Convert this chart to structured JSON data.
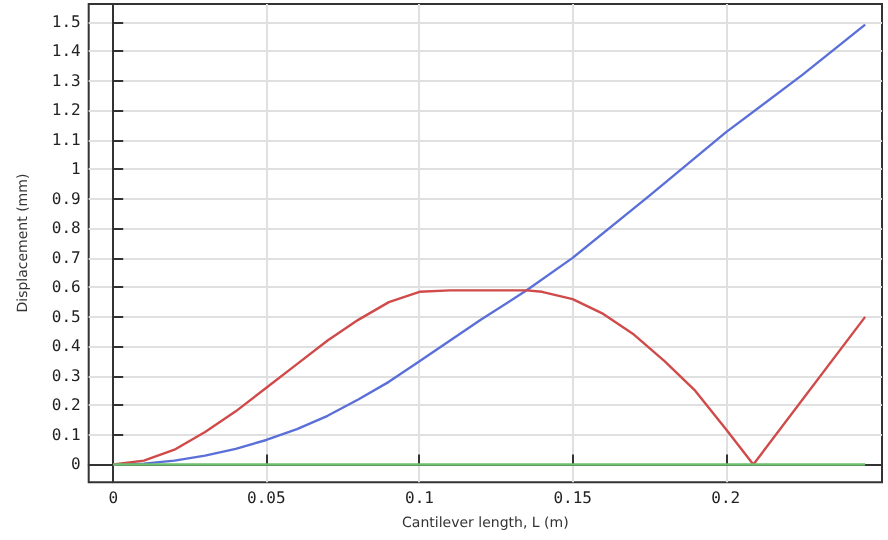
{
  "chart_data": {
    "type": "line",
    "xlabel": "Cantilever length, L (m)",
    "ylabel": "Displacement (mm)",
    "xlim": [
      -0.008,
      0.251
    ],
    "xticks": [
      0,
      0.05,
      0.1,
      0.15,
      0.2
    ],
    "ylim": [
      -0.06,
      1.56
    ],
    "yticks": [
      0,
      0.1,
      0.2,
      0.3,
      0.4,
      0.5,
      0.6,
      0.7,
      0.8,
      0.9,
      1,
      1.1,
      1.2,
      1.3,
      1.4,
      1.5
    ],
    "grid": true,
    "marker": "none",
    "line_style": "solid",
    "series": [
      {
        "color": "#5b6fd8",
        "x": [
          0,
          0.01,
          0.02,
          0.03,
          0.04,
          0.05,
          0.06,
          0.07,
          0.08,
          0.09,
          0.1,
          0.11,
          0.12,
          0.135,
          0.15,
          0.175,
          0.2,
          0.225,
          0.2455
        ],
        "values": [
          0,
          0.003,
          0.013,
          0.03,
          0.053,
          0.083,
          0.12,
          0.165,
          0.22,
          0.28,
          0.35,
          0.42,
          0.49,
          0.59,
          0.7,
          0.91,
          1.125,
          1.32,
          1.49
        ]
      },
      {
        "color": "#d04a4a",
        "x": [
          0,
          0.01,
          0.02,
          0.03,
          0.04,
          0.05,
          0.06,
          0.07,
          0.08,
          0.09,
          0.1,
          0.11,
          0.12,
          0.13,
          0.135,
          0.14,
          0.15,
          0.16,
          0.17,
          0.18,
          0.19,
          0.2,
          0.209,
          0.2455
        ],
        "values": [
          0,
          0.013,
          0.05,
          0.11,
          0.18,
          0.26,
          0.34,
          0.42,
          0.49,
          0.55,
          0.585,
          0.59,
          0.59,
          0.59,
          0.59,
          0.585,
          0.56,
          0.51,
          0.44,
          0.35,
          0.25,
          0.12,
          0,
          0.5
        ]
      },
      {
        "color": "#6cbf6c",
        "x": [
          0,
          0.2455
        ],
        "values": [
          0,
          0
        ]
      }
    ]
  }
}
